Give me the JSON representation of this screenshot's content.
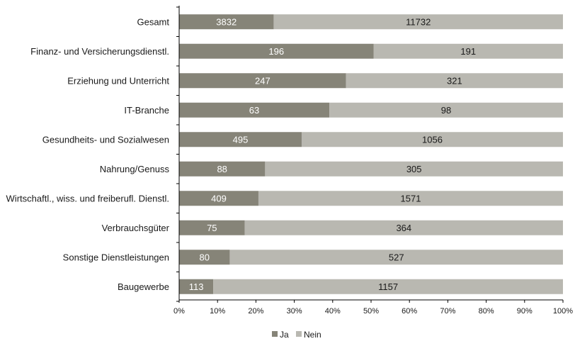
{
  "colors": {
    "ja": "#868478",
    "nein": "#b9b8b1",
    "axis": "#000000",
    "label_on_ja": "#ffffff",
    "label_on_nein": "#1a1a1a"
  },
  "chart_data": {
    "type": "bar",
    "orientation": "horizontal",
    "stacked": "100%",
    "categories": [
      "Gesamt",
      "Finanz- und Versicherungsdienstl.",
      "Erziehung und Unterricht",
      "IT-Branche",
      "Gesundheits- und Sozialwesen",
      "Nahrung/Genuss",
      "Wirtschaftl., wiss. und freiberufl. Dienstl.",
      "Verbrauchsgüter",
      "Sonstige Dienstleistungen",
      "Baugewerbe"
    ],
    "series": [
      {
        "name": "Ja",
        "values": [
          3832,
          196,
          247,
          63,
          495,
          88,
          409,
          75,
          80,
          113
        ]
      },
      {
        "name": "Nein",
        "values": [
          11732,
          191,
          321,
          98,
          1056,
          305,
          1571,
          364,
          527,
          1157
        ]
      }
    ],
    "xticks": [
      "0%",
      "10%",
      "20%",
      "30%",
      "40%",
      "50%",
      "60%",
      "70%",
      "80%",
      "90%",
      "100%"
    ],
    "xlim": [
      0,
      100
    ],
    "grid": false,
    "legend_position": "bottom",
    "title": "",
    "xlabel": "",
    "ylabel": ""
  }
}
